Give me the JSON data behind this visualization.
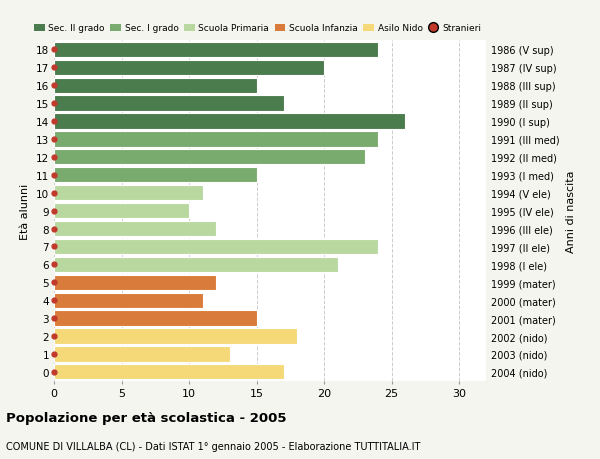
{
  "ages": [
    18,
    17,
    16,
    15,
    14,
    13,
    12,
    11,
    10,
    9,
    8,
    7,
    6,
    5,
    4,
    3,
    2,
    1,
    0
  ],
  "values": [
    24,
    20,
    15,
    17,
    26,
    24,
    23,
    15,
    11,
    10,
    12,
    24,
    21,
    12,
    11,
    15,
    18,
    13,
    17
  ],
  "right_labels": [
    "1986 (V sup)",
    "1987 (IV sup)",
    "1988 (III sup)",
    "1989 (II sup)",
    "1990 (I sup)",
    "1991 (III med)",
    "1992 (II med)",
    "1993 (I med)",
    "1994 (V ele)",
    "1995 (IV ele)",
    "1996 (III ele)",
    "1997 (II ele)",
    "1998 (I ele)",
    "1999 (mater)",
    "2000 (mater)",
    "2001 (mater)",
    "2002 (nido)",
    "2003 (nido)",
    "2004 (nido)"
  ],
  "colors": [
    "#4a7c4e",
    "#4a7c4e",
    "#4a7c4e",
    "#4a7c4e",
    "#4a7c4e",
    "#7aab6e",
    "#7aab6e",
    "#7aab6e",
    "#b8d8a0",
    "#b8d8a0",
    "#b8d8a0",
    "#b8d8a0",
    "#b8d8a0",
    "#d97b3a",
    "#d97b3a",
    "#d97b3a",
    "#f5d878",
    "#f5d878",
    "#f5d878"
  ],
  "legend_labels": [
    "Sec. II grado",
    "Sec. I grado",
    "Scuola Primaria",
    "Scuola Infanzia",
    "Asilo Nido",
    "Stranieri"
  ],
  "legend_colors": [
    "#4a7c4e",
    "#7aab6e",
    "#b8d8a0",
    "#d97b3a",
    "#f5d878",
    "#c0392b"
  ],
  "dot_color": "#c0392b",
  "title": "Popolazione per età scolastica - 2005",
  "subtitle": "COMUNE DI VILLALBA (CL) - Dati ISTAT 1° gennaio 2005 - Elaborazione TUTTITALIA.IT",
  "ylabel_left": "Età alunni",
  "ylabel_right": "Anni di nascita",
  "xlim": [
    0,
    32
  ],
  "background_color": "#f5f5f0",
  "bar_background": "#ffffff"
}
